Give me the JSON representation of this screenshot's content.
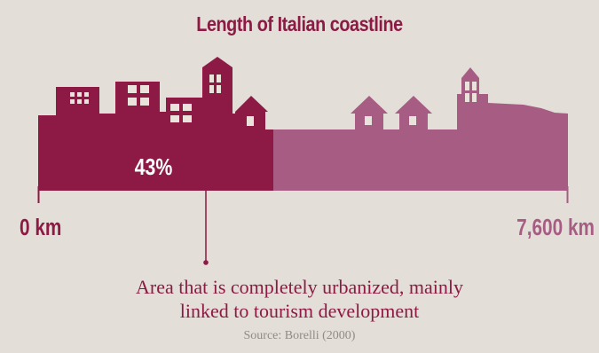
{
  "title": "Length of Italian coastline",
  "chart_data": {
    "type": "bar",
    "categories": [
      "Completely urbanized"
    ],
    "values": [
      43
    ],
    "unit": "%",
    "value_label": "43%",
    "scale_min_label": "0 km",
    "scale_max_label": "7,600 km",
    "annotation": "Area that is completely urbanized, mainly linked to tourism development"
  },
  "annotation_lines": [
    "Area that is completely urbanized, mainly",
    "linked to tourism development"
  ],
  "source": "Source: Borelli (2000)",
  "colors": {
    "urbanized": "#8c1a44",
    "rest": "#a75d83",
    "background": "#e3ded8",
    "windows": "#e9e3dc"
  }
}
